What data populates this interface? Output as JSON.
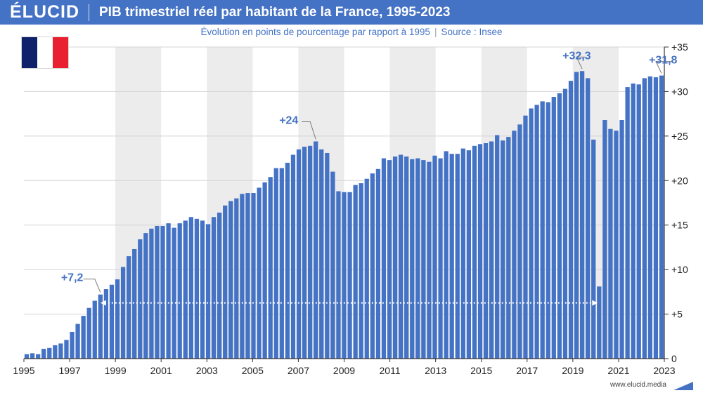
{
  "brand": {
    "logo": "ÉLUCID",
    "url": "www.elucid.media",
    "accent": "#4472c4",
    "band_color": "#ececec"
  },
  "header": {
    "title": "PIB trimestriel réel par habitant de la France, 1995-2023",
    "subtitle": "Évolution en points de pourcentage par rapport à 1995",
    "source": "Source : Insee"
  },
  "flag": {
    "colors": [
      "#10216c",
      "#ffffff",
      "#e8202f"
    ]
  },
  "chart_data": {
    "type": "bar",
    "x_start": 1995.0,
    "x_end": 2023.0,
    "ylim": [
      0,
      35
    ],
    "yticks": [
      0,
      5,
      10,
      15,
      20,
      25,
      30,
      35
    ],
    "ytick_labels": [
      "0",
      "+5",
      "+10",
      "+15",
      "+20",
      "+25",
      "+30",
      "+35"
    ],
    "xticks": [
      1995,
      1997,
      1999,
      2001,
      2003,
      2005,
      2007,
      2009,
      2011,
      2013,
      2015,
      2017,
      2019,
      2021,
      2023
    ],
    "xtick_labels": [
      "1995",
      "1997",
      "1999",
      "2001",
      "2003",
      "2005",
      "2007",
      "2009",
      "2011",
      "2013",
      "2015",
      "2017",
      "2019",
      "2021",
      "2023"
    ],
    "shaded_years": [
      [
        1999,
        2001
      ],
      [
        2003,
        2005
      ],
      [
        2007,
        2009
      ],
      [
        2011,
        2013
      ],
      [
        2015,
        2017
      ],
      [
        2019,
        2021
      ]
    ],
    "grid": true,
    "values": [
      0.5,
      0.6,
      0.5,
      1.1,
      1.2,
      1.5,
      1.7,
      2.1,
      3.0,
      3.9,
      4.8,
      5.7,
      6.5,
      7.2,
      7.8,
      8.3,
      8.9,
      10.3,
      11.5,
      12.3,
      13.4,
      14.1,
      14.6,
      14.9,
      14.9,
      15.2,
      14.7,
      15.2,
      15.5,
      15.9,
      15.7,
      15.5,
      15.1,
      15.9,
      16.4,
      17.2,
      17.7,
      18.0,
      18.5,
      18.6,
      18.6,
      19.2,
      19.8,
      20.4,
      21.4,
      21.4,
      22.0,
      22.9,
      23.5,
      23.8,
      23.9,
      24.4,
      23.5,
      23.1,
      21.0,
      18.8,
      18.7,
      18.7,
      19.5,
      19.7,
      20.2,
      20.8,
      21.3,
      22.5,
      22.3,
      22.7,
      22.9,
      22.7,
      22.4,
      22.5,
      22.3,
      22.1,
      22.8,
      22.5,
      23.3,
      23.0,
      23.0,
      23.6,
      23.4,
      23.9,
      24.1,
      24.2,
      24.4,
      25.1,
      24.5,
      24.9,
      25.6,
      26.3,
      27.3,
      28.1,
      28.5,
      28.9,
      28.8,
      29.4,
      29.8,
      30.3,
      31.2,
      32.2,
      32.3,
      31.5,
      24.6,
      8.1,
      26.8,
      25.8,
      25.6,
      26.8,
      30.5,
      30.9,
      30.8,
      31.5,
      31.7,
      31.6,
      31.8
    ],
    "annotations": [
      {
        "label": "+7,2",
        "index": 13
      },
      {
        "label": "+24",
        "index": 51
      },
      {
        "label": "+32,3",
        "index": 98
      },
      {
        "label": "+31,8",
        "index": 112
      }
    ],
    "arrow": {
      "from_index": 13,
      "to_index": 101,
      "level": 7.2
    }
  }
}
